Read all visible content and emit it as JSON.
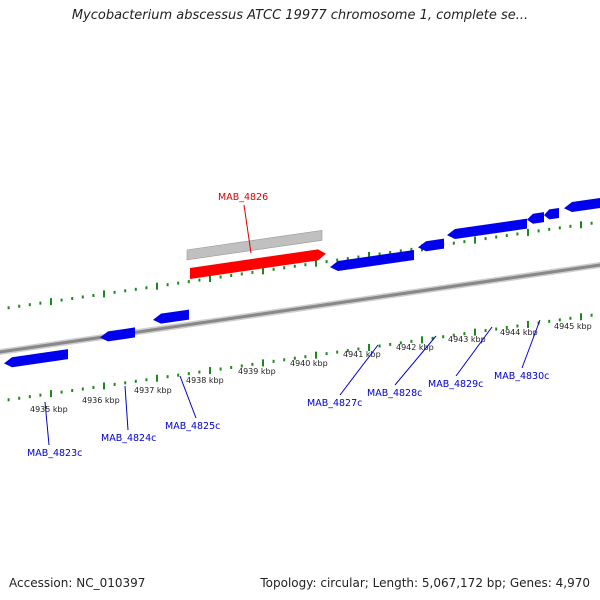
{
  "title": "Mycobacterium abscessus ATCC 19977 chromosome 1, complete se...",
  "footer": {
    "accession": "Accession: NC_010397",
    "summary": "Topology: circular; Length: 5,067,172 bp; Genes: 4,970"
  },
  "colors": {
    "backbone": "#888888",
    "forward_gene": "#ff0000",
    "forward_gene_shadow": "#c0c0c0",
    "reverse_gene": "#0000ee",
    "reverse_gene_label": "#0000cc",
    "selected_label": "#dd0000",
    "ruler_ticks": "#1a8a1a"
  },
  "ruler_labels": [
    "4935 kbp",
    "4936 kbp",
    "4937 kbp",
    "4938 kbp",
    "4939 kbp",
    "4940 kbp",
    "4941 kbp",
    "4942 kbp",
    "4943 kbp",
    "4944 kbp",
    "4945 kbp"
  ],
  "genes_forward": [
    {
      "label": "MAB_4826",
      "strand": "+"
    }
  ],
  "genes_reverse": [
    {
      "label": "MAB_4823c",
      "strand": "-"
    },
    {
      "label": "MAB_4824c",
      "strand": "-"
    },
    {
      "label": "MAB_4825c",
      "strand": "-"
    },
    {
      "label": "MAB_4827c",
      "strand": "-"
    },
    {
      "label": "MAB_4828c",
      "strand": "-"
    },
    {
      "label": "MAB_4829c",
      "strand": "-"
    },
    {
      "label": "MAB_4830c",
      "strand": "-"
    }
  ]
}
